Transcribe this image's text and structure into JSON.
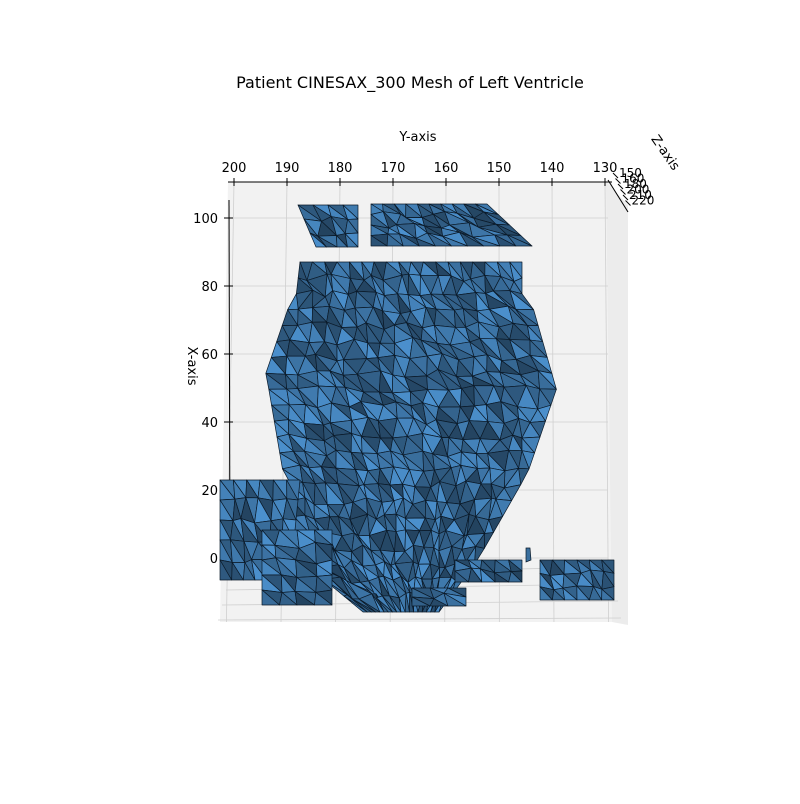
{
  "chart_data": {
    "type": "3d-mesh",
    "title": "Patient CINESAX_300 Mesh of Left Ventricle",
    "xlabel": "Y-axis",
    "ylabel": "X-axis",
    "zlabel": "Z-axis",
    "y_axis_ticks": [
      "200",
      "190",
      "180",
      "170",
      "160",
      "150",
      "140",
      "130"
    ],
    "y_axis_values": [
      200,
      190,
      180,
      170,
      160,
      150,
      140,
      130
    ],
    "x_axis_ticks": [
      "0",
      "20",
      "40",
      "60",
      "80",
      "100"
    ],
    "x_axis_values": [
      0,
      20,
      40,
      60,
      80,
      100
    ],
    "z_axis_ticks": [
      "150",
      "160",
      "180",
      "200",
      "210",
      "220"
    ],
    "z_axis_values": [
      150,
      160,
      180,
      200,
      210,
      220
    ],
    "y_range": [
      201,
      129
    ],
    "x_range": [
      -10,
      108
    ],
    "grid": true,
    "colors": {
      "face": "#3a6f9e",
      "edge": "#0b1a29",
      "pane": "#f2f2f2",
      "grid": "#cfcfcf"
    }
  }
}
